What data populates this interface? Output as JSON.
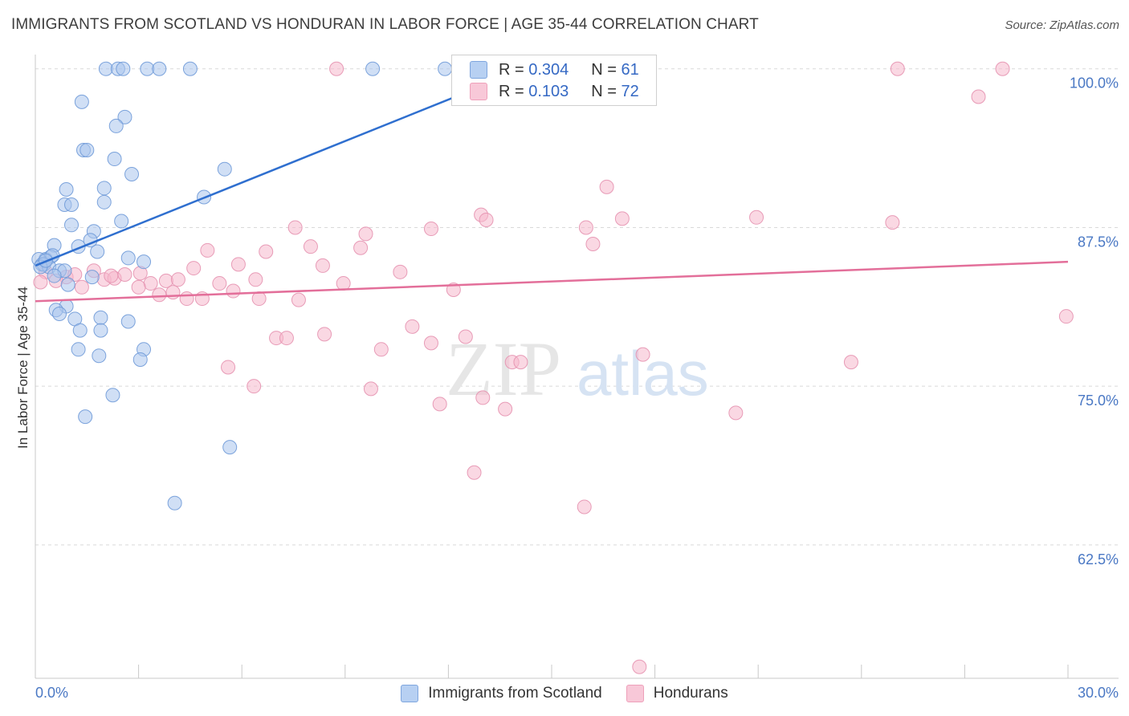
{
  "title": "IMMIGRANTS FROM SCOTLAND VS HONDURAN IN LABOR FORCE | AGE 35-44 CORRELATION CHART",
  "source": "Source: ZipAtlas.com",
  "colors": {
    "scotland_fill": "#a9c4ec",
    "scotland_line": "#2f6fcf",
    "honduran_fill": "#f5b8cc",
    "honduran_line": "#e36f9a",
    "tick_text": "#4a78c4"
  },
  "legend": {
    "scotland": {
      "r_label": "R =",
      "r_value": "0.304",
      "n_label": "N =",
      "n_value": "61"
    },
    "honduran": {
      "r_label": "R =",
      "r_value": "0.103",
      "n_label": "N =",
      "n_value": "72"
    }
  },
  "bottom_legend": {
    "scotland": "Immigrants from Scotland",
    "honduran": "Hondurans"
  },
  "watermark": {
    "zip": "ZIP",
    "atlas": "atlas"
  },
  "chart_data": {
    "type": "scatter",
    "title": "IMMIGRANTS FROM SCOTLAND VS HONDURAN IN LABOR FORCE | AGE 35-44 CORRELATION CHART",
    "xlabel": "",
    "ylabel": "In Labor Force | Age 35-44",
    "xlim": [
      0,
      30
    ],
    "ylim": [
      52,
      101.5
    ],
    "x_tick_labels": [
      "0.0%",
      "30.0%"
    ],
    "y_ticks": [
      100,
      87.5,
      75,
      62.5
    ],
    "y_tick_labels": [
      "100.0%",
      "87.5%",
      "75.0%",
      "62.5%"
    ],
    "grid": true,
    "series": [
      {
        "name": "Immigrants from Scotland",
        "trend": {
          "x": [
            0,
            14.5
          ],
          "y": [
            84.5,
            100.3
          ]
        },
        "points": [
          [
            2.05,
            100
          ],
          [
            2.4,
            100
          ],
          [
            2.55,
            100
          ],
          [
            3.25,
            100
          ],
          [
            3.6,
            100
          ],
          [
            4.5,
            100
          ],
          [
            9.8,
            100
          ],
          [
            11.9,
            100
          ],
          [
            1.35,
            97.4
          ],
          [
            2.6,
            96.2
          ],
          [
            2.35,
            95.5
          ],
          [
            1.4,
            93.6
          ],
          [
            1.5,
            93.6
          ],
          [
            2.3,
            92.9
          ],
          [
            5.5,
            92.1
          ],
          [
            2.8,
            91.7
          ],
          [
            0.9,
            90.5
          ],
          [
            2.0,
            90.6
          ],
          [
            0.85,
            89.3
          ],
          [
            1.05,
            89.3
          ],
          [
            2.0,
            89.5
          ],
          [
            4.9,
            89.9
          ],
          [
            2.5,
            88.0
          ],
          [
            1.05,
            87.7
          ],
          [
            1.7,
            87.2
          ],
          [
            1.6,
            86.5
          ],
          [
            1.25,
            86.0
          ],
          [
            0.55,
            86.1
          ],
          [
            0.3,
            85.0
          ],
          [
            0.45,
            85.2
          ],
          [
            0.5,
            85.3
          ],
          [
            1.8,
            85.6
          ],
          [
            0.1,
            85.0
          ],
          [
            0.2,
            84.6
          ],
          [
            0.25,
            84.6
          ],
          [
            0.4,
            84.4
          ],
          [
            0.7,
            84.1
          ],
          [
            0.85,
            84.1
          ],
          [
            0.15,
            84.4
          ],
          [
            0.55,
            83.7
          ],
          [
            2.7,
            85.1
          ],
          [
            3.15,
            84.8
          ],
          [
            1.65,
            83.6
          ],
          [
            0.95,
            83.0
          ],
          [
            0.9,
            81.3
          ],
          [
            0.6,
            81.0
          ],
          [
            0.7,
            80.7
          ],
          [
            1.15,
            80.3
          ],
          [
            1.9,
            80.4
          ],
          [
            2.7,
            80.1
          ],
          [
            1.3,
            79.4
          ],
          [
            1.9,
            79.4
          ],
          [
            1.25,
            77.9
          ],
          [
            3.15,
            77.9
          ],
          [
            1.85,
            77.4
          ],
          [
            3.05,
            77.1
          ],
          [
            2.25,
            74.3
          ],
          [
            1.45,
            72.6
          ],
          [
            5.65,
            70.2
          ],
          [
            4.05,
            65.8
          ],
          [
            0.3,
            84.9
          ]
        ]
      },
      {
        "name": "Hondurans",
        "trend": {
          "x": [
            0,
            30
          ],
          "y": [
            81.7,
            84.8
          ]
        },
        "points": [
          [
            8.75,
            100
          ],
          [
            25.05,
            100
          ],
          [
            28.1,
            100
          ],
          [
            27.4,
            97.8
          ],
          [
            16.6,
            90.7
          ],
          [
            12.95,
            88.5
          ],
          [
            13.1,
            88.1
          ],
          [
            17.05,
            88.2
          ],
          [
            20.95,
            88.3
          ],
          [
            24.9,
            87.9
          ],
          [
            7.55,
            87.5
          ],
          [
            9.6,
            87.0
          ],
          [
            11.5,
            87.4
          ],
          [
            16.0,
            87.5
          ],
          [
            8.0,
            86.0
          ],
          [
            9.45,
            85.9
          ],
          [
            16.2,
            86.2
          ],
          [
            5.0,
            85.7
          ],
          [
            6.7,
            85.6
          ],
          [
            4.6,
            84.3
          ],
          [
            5.9,
            84.6
          ],
          [
            8.35,
            84.5
          ],
          [
            10.6,
            84.0
          ],
          [
            0.3,
            84.0
          ],
          [
            0.9,
            83.6
          ],
          [
            1.15,
            83.8
          ],
          [
            1.7,
            84.1
          ],
          [
            2.0,
            83.4
          ],
          [
            2.3,
            83.5
          ],
          [
            2.6,
            83.8
          ],
          [
            3.05,
            83.9
          ],
          [
            3.35,
            83.1
          ],
          [
            3.8,
            83.3
          ],
          [
            4.15,
            83.4
          ],
          [
            5.35,
            83.1
          ],
          [
            6.4,
            83.4
          ],
          [
            1.35,
            82.8
          ],
          [
            3.0,
            82.8
          ],
          [
            3.6,
            82.2
          ],
          [
            4.0,
            82.4
          ],
          [
            4.4,
            81.9
          ],
          [
            4.85,
            81.9
          ],
          [
            5.75,
            82.5
          ],
          [
            6.5,
            81.9
          ],
          [
            7.65,
            81.8
          ],
          [
            8.95,
            83.1
          ],
          [
            12.15,
            82.6
          ],
          [
            10.95,
            79.7
          ],
          [
            7.0,
            78.8
          ],
          [
            7.3,
            78.8
          ],
          [
            8.4,
            79.1
          ],
          [
            12.5,
            78.9
          ],
          [
            11.5,
            78.4
          ],
          [
            10.05,
            77.9
          ],
          [
            13.85,
            76.9
          ],
          [
            14.1,
            76.9
          ],
          [
            17.65,
            77.5
          ],
          [
            23.7,
            76.9
          ],
          [
            5.6,
            76.5
          ],
          [
            6.35,
            75.0
          ],
          [
            9.75,
            74.8
          ],
          [
            13.0,
            74.1
          ],
          [
            11.75,
            73.6
          ],
          [
            13.65,
            73.2
          ],
          [
            20.35,
            72.9
          ],
          [
            29.95,
            80.5
          ],
          [
            12.75,
            68.2
          ],
          [
            15.95,
            65.5
          ],
          [
            17.55,
            52.9
          ],
          [
            0.15,
            83.2
          ],
          [
            0.6,
            83.3
          ],
          [
            2.2,
            83.7
          ]
        ]
      }
    ]
  }
}
